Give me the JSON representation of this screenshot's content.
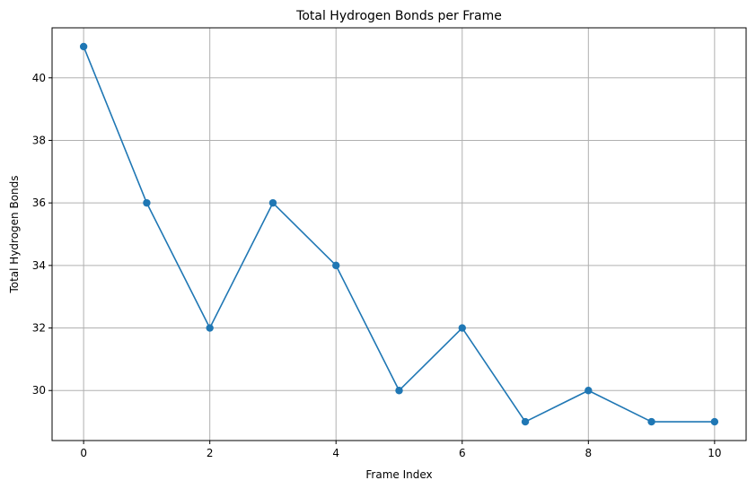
{
  "chart_data": {
    "type": "line",
    "title": "Total Hydrogen Bonds per Frame",
    "xlabel": "Frame Index",
    "ylabel": "Total Hydrogen Bonds",
    "x": [
      0,
      1,
      2,
      3,
      4,
      5,
      6,
      7,
      8,
      9,
      10
    ],
    "series": [
      {
        "values": [
          41,
          36,
          32,
          36,
          34,
          30,
          32,
          29,
          30,
          29,
          29
        ]
      }
    ],
    "xlim": [
      -0.5,
      10.5
    ],
    "ylim": [
      28.4,
      41.6
    ],
    "xticks": [
      0,
      2,
      4,
      6,
      8,
      10
    ],
    "yticks": [
      30,
      32,
      34,
      36,
      38,
      40
    ],
    "grid": true,
    "markers": "circle",
    "line_color": "#1f77b4",
    "grid_color": "#b0b0b0"
  }
}
